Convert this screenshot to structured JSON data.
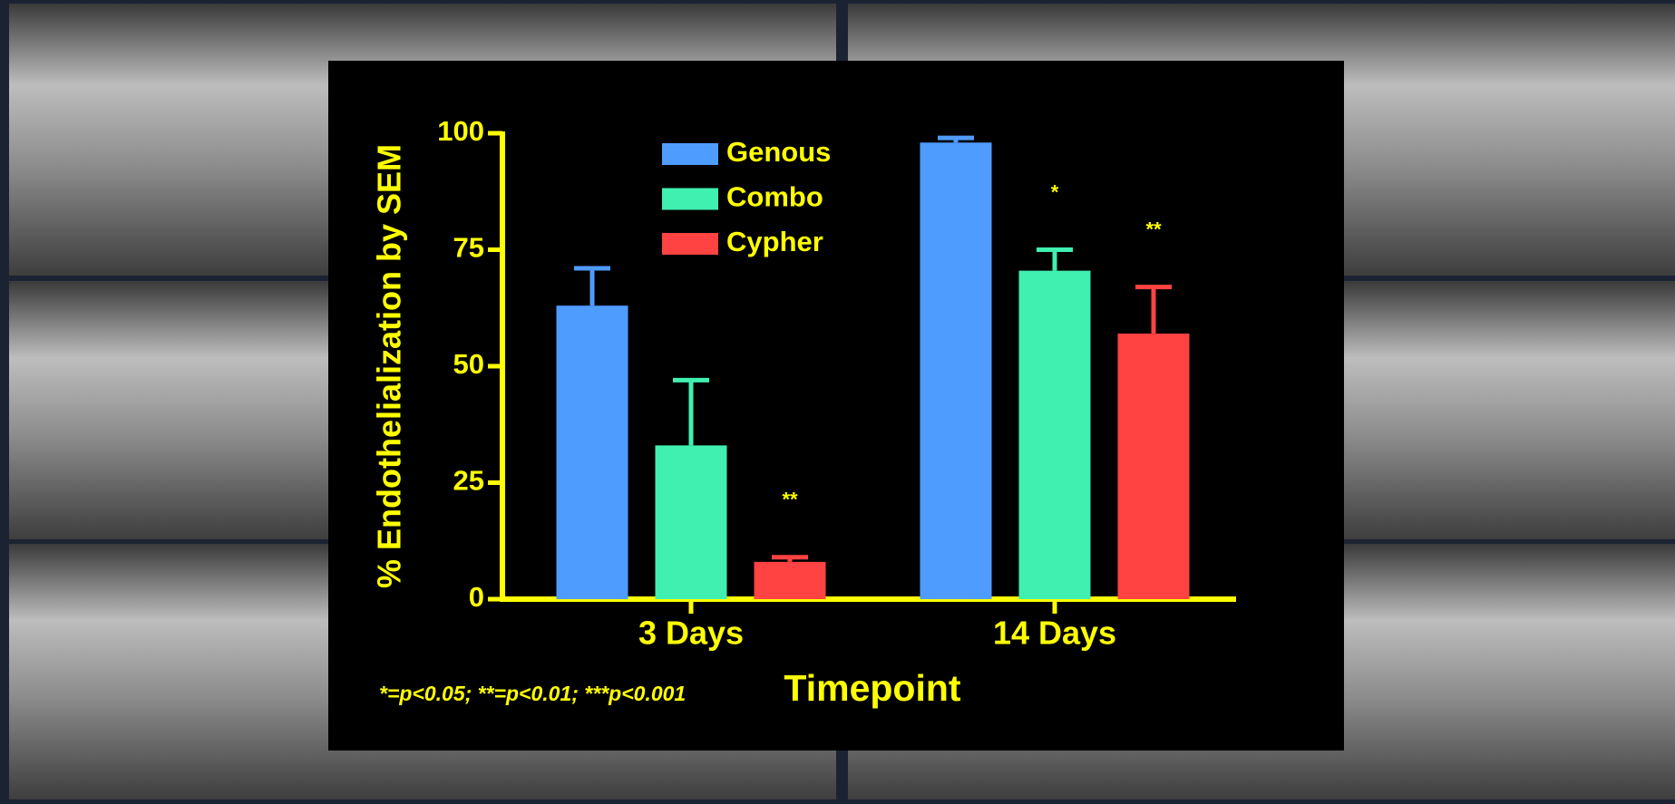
{
  "chart_data": {
    "type": "bar",
    "y_label": "% Endothelialization by SEM",
    "x_label": "Timepoint",
    "footnote": "*=p<0.05; **=p<0.01; ***p<0.001",
    "categories": [
      "3 Days",
      "14 Days"
    ],
    "series": [
      {
        "name": "Genous",
        "color": "#4f9cff",
        "values": [
          63,
          98
        ],
        "errors": [
          8,
          1
        ],
        "significance": [
          null,
          null
        ]
      },
      {
        "name": "Combo",
        "color": "#40f0b0",
        "values": [
          33,
          70.5
        ],
        "errors": [
          14,
          4.5
        ],
        "significance": [
          null,
          "*"
        ]
      },
      {
        "name": "Cypher",
        "color": "#ff4242",
        "values": [
          8,
          57
        ],
        "errors": [
          1,
          10
        ],
        "significance": [
          "**",
          "**"
        ]
      }
    ],
    "ylim": [
      0,
      100
    ],
    "yticks": [
      0,
      25,
      50,
      75,
      100
    ],
    "axis_color": "#ffff00"
  }
}
